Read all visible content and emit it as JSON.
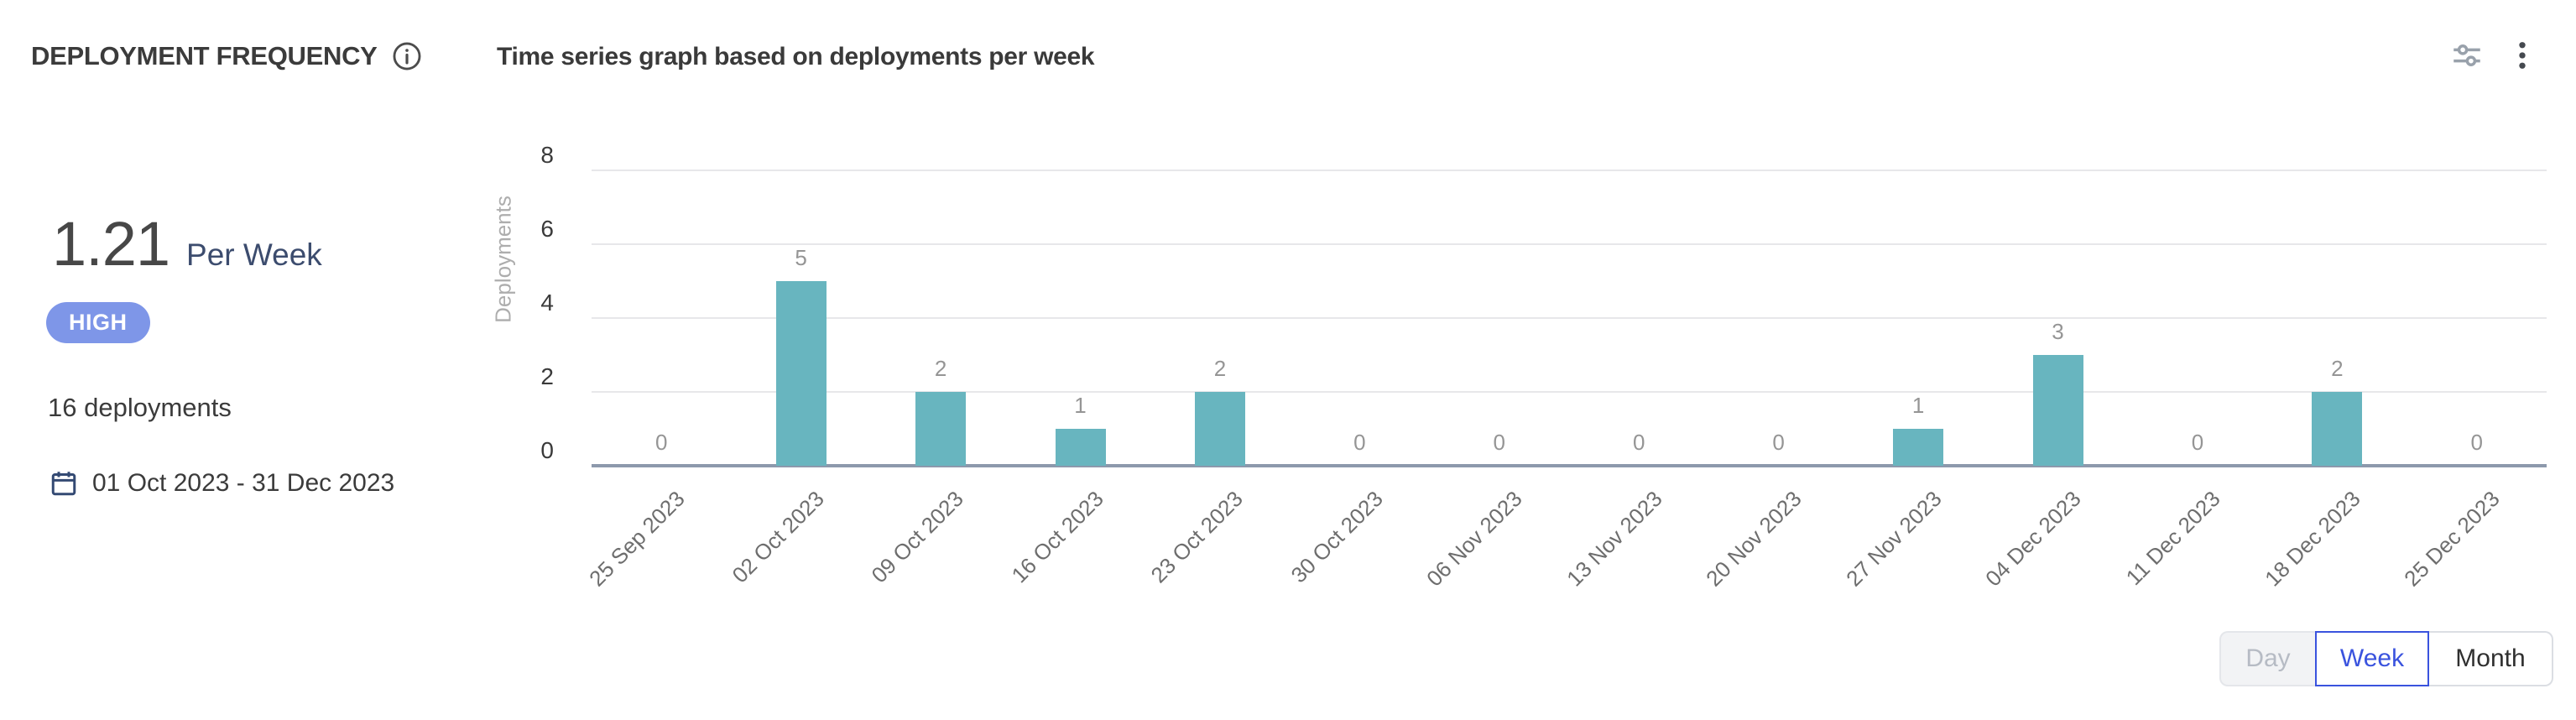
{
  "header": {
    "title": "DEPLOYMENT FREQUENCY",
    "subtitle": "Time series graph based on deployments per week"
  },
  "summary": {
    "rate_value": "1.21",
    "rate_unit": "Per Week",
    "level_badge": "HIGH",
    "total_deployments": "16 deployments",
    "date_range": "01 Oct 2023 - 31 Dec 2023"
  },
  "chart_data": {
    "type": "bar",
    "title": "Time series graph based on deployments per week",
    "xlabel": "",
    "ylabel": "Deployments",
    "categories": [
      "25 Sep 2023",
      "02 Oct 2023",
      "09 Oct 2023",
      "16 Oct 2023",
      "23 Oct 2023",
      "30 Oct 2023",
      "06 Nov 2023",
      "13 Nov 2023",
      "20 Nov 2023",
      "27 Nov 2023",
      "04 Dec 2023",
      "11 Dec 2023",
      "18 Dec 2023",
      "25 Dec 2023"
    ],
    "values": [
      0,
      5,
      2,
      1,
      2,
      0,
      0,
      0,
      0,
      1,
      3,
      0,
      2,
      0
    ],
    "ylim": [
      0,
      8
    ],
    "yticks": [
      0,
      2,
      4,
      6,
      8
    ],
    "grid": true,
    "legend": "none",
    "bar_color": "#68b5bf",
    "value_labels_shown": true
  },
  "controls": {
    "granularity": [
      {
        "label": "Day",
        "state": "disabled"
      },
      {
        "label": "Week",
        "state": "selected"
      },
      {
        "label": "Month",
        "state": "default"
      }
    ]
  },
  "colors": {
    "accent_teal": "#68b5bf",
    "badge_blue": "#7e96e8",
    "selected_blue": "#3a53de",
    "axis_line": "#8d99ac",
    "gridline": "#e7e7ea"
  }
}
